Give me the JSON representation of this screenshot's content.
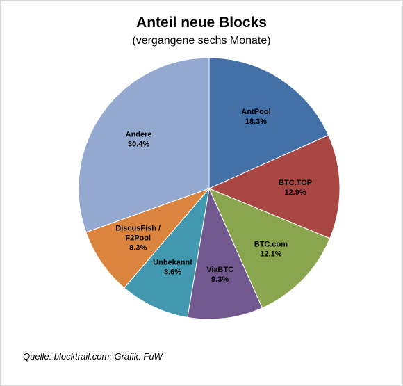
{
  "chart_data": {
    "type": "pie",
    "title": "Anteil neue Blocks",
    "subtitle": "(vergangene sechs Monate)",
    "slices": [
      {
        "label": "AntPool",
        "value_label": "18.3%",
        "value": 18.3,
        "color": "#4470a8"
      },
      {
        "label": "BTC.TOP",
        "value_label": "12.9%",
        "value": 12.9,
        "color": "#a84644"
      },
      {
        "label": "BTC.com",
        "value_label": "12.1%",
        "value": 12.1,
        "color": "#89a54e"
      },
      {
        "label": "ViaBTC",
        "value_label": "9.3%",
        "value": 9.3,
        "color": "#71588f"
      },
      {
        "label": "Unbekannt",
        "value_label": "8.6%",
        "value": 8.6,
        "color": "#4198af"
      },
      {
        "label": "DiscusFish  /\nF2Pool",
        "value_label": "8.3%",
        "value": 8.3,
        "color": "#db843d"
      },
      {
        "label": "Andere",
        "value_label": "30.4%",
        "value": 30.4,
        "color": "#93a9cf"
      }
    ]
  },
  "source": "Quelle: blocktrail.com; Grafik: FuW"
}
